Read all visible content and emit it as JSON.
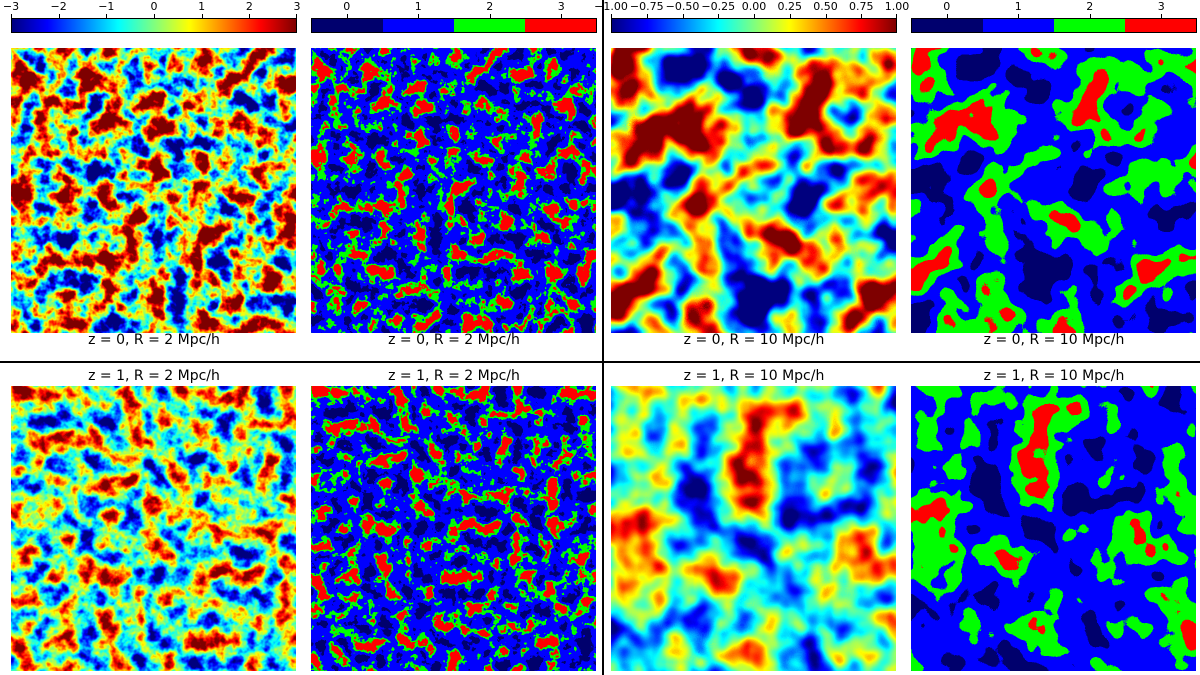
{
  "colorbars": [
    {
      "ticks": [
        "−3",
        "−2",
        "−1",
        "0",
        "1",
        "2",
        "3"
      ],
      "type": "continuous"
    },
    {
      "ticks": [
        "0",
        "1",
        "2",
        "3"
      ],
      "type": "discrete"
    },
    {
      "ticks": [
        "−1.00",
        "−0.75",
        "−0.50",
        "−0.25",
        "0.00",
        "0.25",
        "0.50",
        "0.75",
        "1.00"
      ],
      "type": "continuous"
    },
    {
      "ticks": [
        "0",
        "1",
        "2",
        "3"
      ],
      "type": "discrete"
    }
  ],
  "captions": {
    "top": [
      "z = 0, R = 2 Mpc/h",
      "z = 0, R = 2 Mpc/h",
      "z = 0, R = 10 Mpc/h",
      "z = 0, R = 10 Mpc/h"
    ],
    "bottom": [
      "z = 1, R = 2 Mpc/h",
      "z = 1, R = 2 Mpc/h",
      "z = 1, R = 10 Mpc/h",
      "z = 1, R = 10 Mpc/h"
    ]
  },
  "colors": {
    "discrete": [
      "#00006e",
      "#0000ff",
      "#00ff00",
      "#ff0000"
    ],
    "jet": [
      "#00007f",
      "#0000ff",
      "#007fff",
      "#00ffff",
      "#7fff7f",
      "#ffff00",
      "#ff7f00",
      "#ff0000",
      "#7f0000"
    ]
  }
}
